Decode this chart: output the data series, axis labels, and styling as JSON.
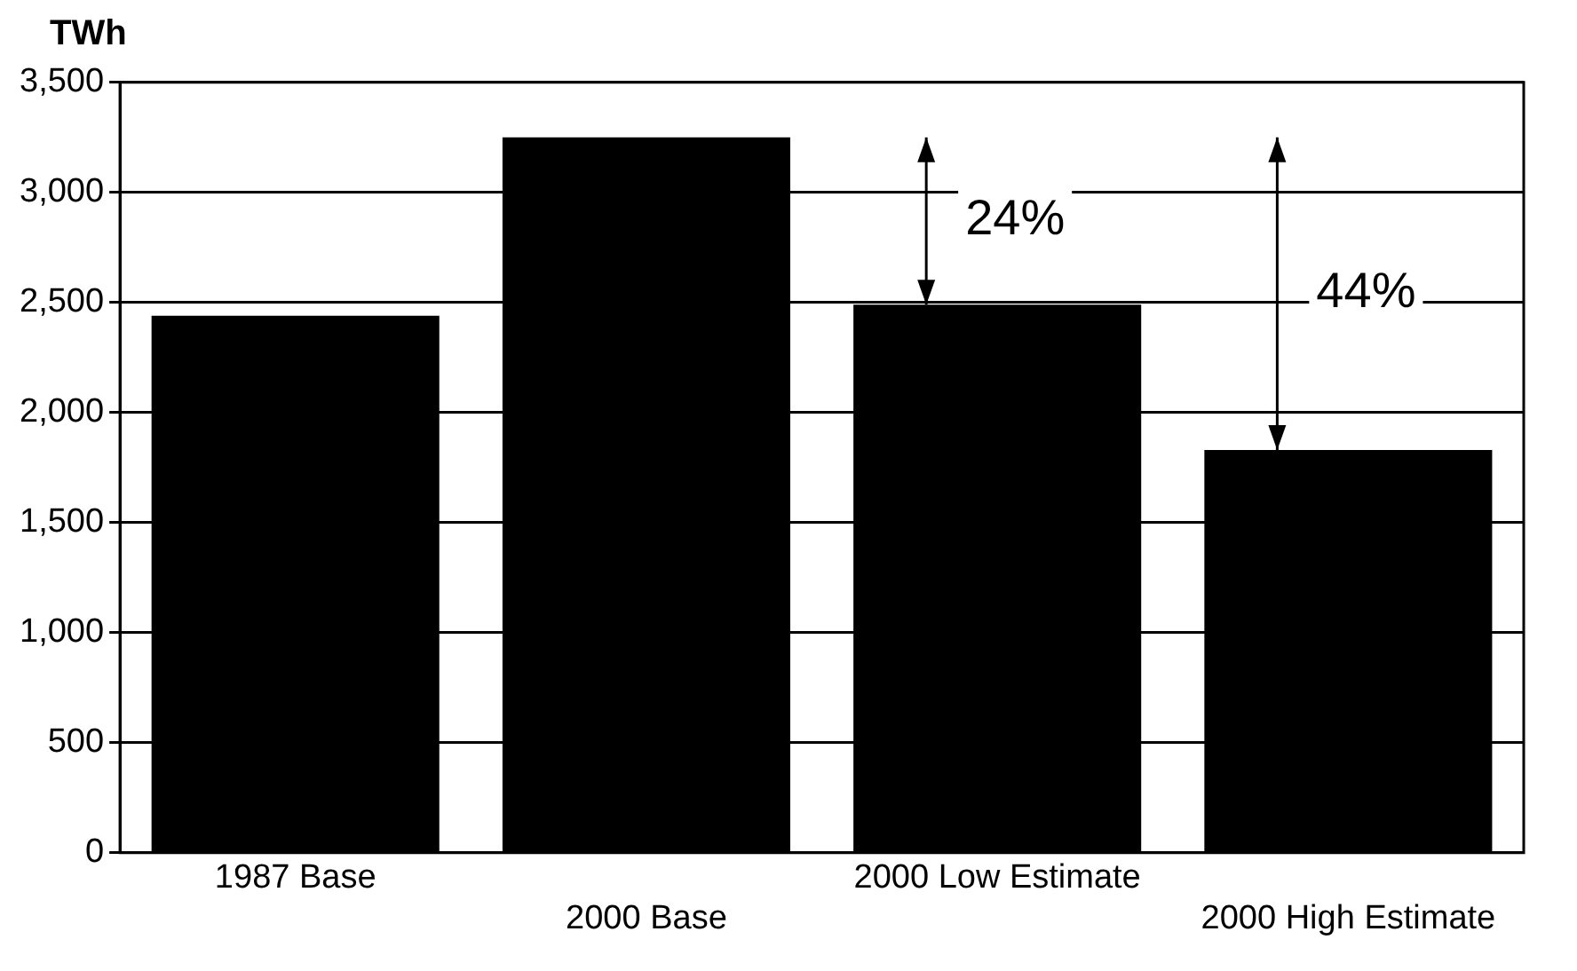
{
  "chart_data": {
    "type": "bar",
    "ylabel": "TWh",
    "categories": [
      "1987 Base",
      "2000 Base",
      "2000 Low Estimate",
      "2000 High Estimate"
    ],
    "values": [
      2440,
      3250,
      2490,
      1830
    ],
    "color": "#000000",
    "ylim": [
      0,
      3500
    ],
    "yticks": [
      {
        "value": 0,
        "label": "0"
      },
      {
        "value": 500,
        "label": "500"
      },
      {
        "value": 1000,
        "label": "1,000"
      },
      {
        "value": 1500,
        "label": "1,500"
      },
      {
        "value": 2000,
        "label": "2,000"
      },
      {
        "value": 2500,
        "label": "2,500"
      },
      {
        "value": 3000,
        "label": "3,000"
      },
      {
        "value": 3500,
        "label": "3,500"
      }
    ],
    "grid": "y",
    "annotations": [
      "24%",
      "44%"
    ]
  }
}
